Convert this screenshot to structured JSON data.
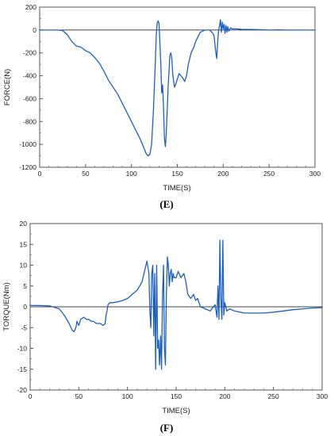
{
  "chart_data": [
    {
      "type": "line",
      "caption": "(E)",
      "xlabel": "TIME(S)",
      "ylabel": "FORCE(N)",
      "xlim": [
        0,
        300
      ],
      "ylim": [
        -1200,
        200
      ],
      "xticks": [
        "0",
        "50",
        "100",
        "150",
        "200",
        "250",
        "300"
      ],
      "yticks": [
        "200",
        "0",
        "-200",
        "-400",
        "-600",
        "-800",
        "-1000",
        "-1200"
      ],
      "grid": false,
      "zero_line": true,
      "line_color": "#1f5fbf",
      "series": [
        {
          "x": [
            0,
            10,
            20,
            25,
            30,
            35,
            40,
            45,
            50,
            55,
            60,
            65,
            70,
            75,
            80,
            85,
            90,
            95,
            100,
            105,
            110,
            113,
            116,
            118,
            120,
            122,
            124,
            126,
            127,
            128,
            129,
            130,
            131,
            132,
            133,
            134,
            135,
            136,
            137,
            138,
            139,
            140,
            141,
            142,
            143,
            144,
            145,
            146,
            147,
            148,
            150,
            152,
            154,
            156,
            158,
            160,
            162,
            165,
            168,
            170,
            175,
            180,
            185,
            188,
            190,
            192,
            193,
            194,
            195,
            196,
            197,
            198,
            199,
            200,
            201,
            202,
            203,
            204,
            205,
            206,
            208,
            210,
            215,
            220,
            230,
            240,
            250,
            260,
            270,
            280,
            290,
            300
          ],
          "y": [
            0,
            0,
            0,
            -5,
            -40,
            -100,
            -140,
            -150,
            -180,
            -200,
            -240,
            -290,
            -360,
            -440,
            -500,
            -560,
            -640,
            -720,
            -800,
            -880,
            -960,
            -1020,
            -1080,
            -1100,
            -1090,
            -1000,
            -700,
            -300,
            -50,
            60,
            80,
            60,
            -100,
            -300,
            -550,
            -480,
            -700,
            -950,
            -1020,
            -900,
            -700,
            -500,
            -350,
            -220,
            -200,
            -250,
            -380,
            -450,
            -500,
            -480,
            -430,
            -380,
            -400,
            -420,
            -450,
            -400,
            -300,
            -200,
            -150,
            -100,
            -20,
            0,
            0,
            -20,
            -50,
            -200,
            -250,
            -100,
            0,
            40,
            90,
            -20,
            70,
            10,
            50,
            -30,
            40,
            -20,
            30,
            -10,
            20,
            10,
            10,
            5,
            5,
            3,
            0,
            2,
            0,
            0,
            0,
            0
          ]
        }
      ]
    },
    {
      "type": "line",
      "caption": "(F)",
      "xlabel": "TIME(S)",
      "ylabel": "TORQUE(Nm)",
      "xlim": [
        0,
        300
      ],
      "ylim": [
        -20,
        20
      ],
      "xticks": [
        "0",
        "50",
        "100",
        "150",
        "200",
        "250",
        "300"
      ],
      "yticks": [
        "20",
        "15",
        "10",
        "5",
        "0",
        "-5",
        "-10",
        "-15",
        "-20"
      ],
      "grid": false,
      "zero_line": true,
      "line_color": "#1f5fbf",
      "series": [
        {
          "x": [
            0,
            10,
            20,
            30,
            35,
            40,
            43,
            45,
            47,
            48,
            50,
            52,
            55,
            58,
            60,
            63,
            65,
            68,
            70,
            72,
            75,
            77,
            78,
            79,
            80,
            82,
            85,
            90,
            95,
            100,
            105,
            110,
            115,
            118,
            120,
            122,
            123,
            124,
            125,
            126,
            127,
            128,
            129,
            130,
            131,
            132,
            133,
            134,
            135,
            136,
            137,
            138,
            139,
            140,
            141,
            142,
            143,
            144,
            145,
            146,
            147,
            148,
            150,
            152,
            155,
            158,
            160,
            162,
            165,
            168,
            170,
            172,
            175,
            180,
            185,
            190,
            192,
            193,
            194,
            195,
            196,
            197,
            198,
            199,
            200,
            202,
            205,
            210,
            220,
            230,
            240,
            250,
            260,
            270,
            280,
            290,
            300
          ],
          "y": [
            0.3,
            0.3,
            0.2,
            -0.5,
            -2,
            -4,
            -5.5,
            -6,
            -5,
            -3.5,
            -4.5,
            -3,
            -2.5,
            -3,
            -3,
            -3.5,
            -3.5,
            -4,
            -4,
            -4,
            -4.5,
            -4,
            -2,
            -1,
            0.5,
            1,
            1,
            1.2,
            1.5,
            2,
            3,
            4,
            6,
            9,
            11,
            8,
            -1,
            -5,
            8,
            10,
            -7,
            8,
            -15,
            10,
            -10,
            -8,
            -14,
            -7,
            -15,
            2,
            10,
            -10,
            -14,
            3,
            12,
            10,
            5,
            8,
            9,
            6,
            8,
            7,
            7,
            8.5,
            7,
            8,
            6,
            3,
            2,
            3,
            1.5,
            2,
            0,
            -0.5,
            -1,
            0.5,
            -2.5,
            5,
            -3,
            16,
            2,
            -3,
            16,
            -2,
            1,
            -1,
            -0.5,
            -1,
            -1.5,
            -1.5,
            -1.5,
            -1.3,
            -1,
            -0.7,
            -0.5,
            -0.3,
            -0.2
          ]
        }
      ]
    }
  ]
}
